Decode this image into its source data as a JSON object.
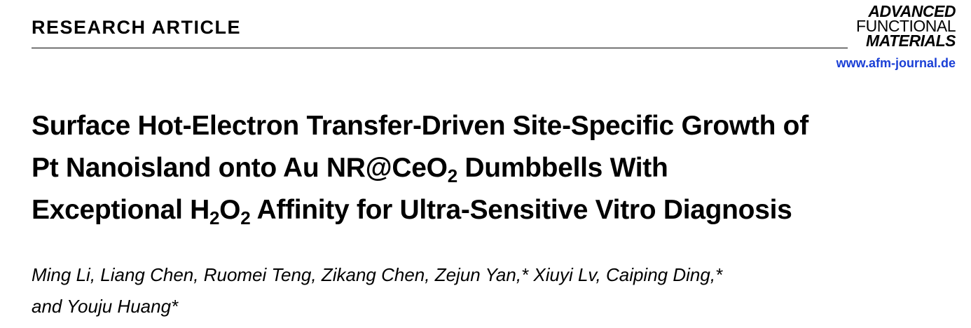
{
  "header": {
    "section_label": "RESEARCH ARTICLE",
    "journal_logo": [
      "ADVANCED",
      "FUNCTIONAL",
      "MATERIALS"
    ],
    "journal_url": "www.afm-journal.de"
  },
  "article": {
    "title_lines": [
      {
        "a": "Surface Hot-Electron Transfer-Driven Site-Specific Growth of"
      },
      {
        "a": "Pt Nanoisland onto Au NR@CeO",
        "s1": "2",
        "b": " Dumbbells With"
      },
      {
        "a": "Exceptional H",
        "s1": "2",
        "b": "O",
        "s2": "2",
        "c": " Affinity for Ultra-Sensitive Vitro Diagnosis"
      }
    ],
    "authors_lines": [
      "Ming Li, Liang Chen, Ruomei Teng, Zikang Chen, Zejun Yan,* Xiuyi Lv, Caiping Ding,*",
      "and Youju Huang*"
    ]
  }
}
